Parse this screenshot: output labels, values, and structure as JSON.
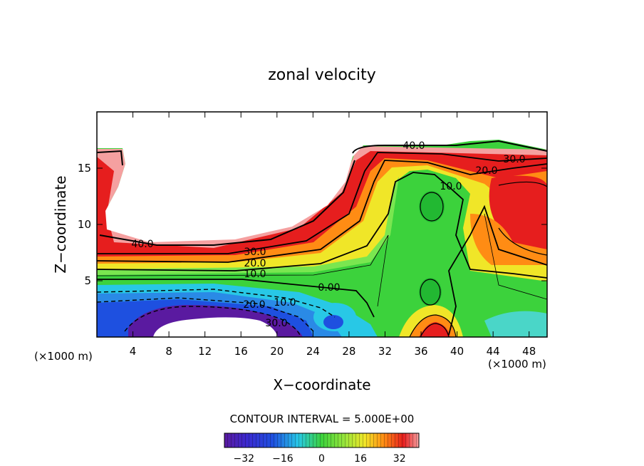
{
  "chart_data": {
    "type": "heatmap",
    "title": "zonal velocity",
    "xlabel": "X−coordinate",
    "ylabel": "Z−coordinate",
    "x_unit_left": "(×1000 m)",
    "x_unit_right": "(×1000 m)",
    "xlim": [
      0,
      50
    ],
    "ylim": [
      0,
      20
    ],
    "x_ticks": [
      4,
      8,
      12,
      16,
      20,
      24,
      28,
      32,
      36,
      40,
      44,
      48
    ],
    "y_ticks": [
      5,
      10,
      15
    ],
    "contour_interval_text": "CONTOUR INTERVAL = 5.000E+00",
    "contour_interval": 5.0,
    "colorbar": {
      "min": -40,
      "max": 40,
      "ticks": [
        -32,
        -16,
        0,
        16,
        32
      ],
      "colormap": "rainbow (purple-blue-cyan-green-yellow-orange-red-pink)"
    },
    "contour_labels": [
      {
        "text": "40.0",
        "x": 5.2,
        "z": 8.3
      },
      {
        "text": "30.0",
        "x": 17.5,
        "z": 7.4
      },
      {
        "text": "20.0",
        "x": 17.5,
        "z": 6.5
      },
      {
        "text": "10.0",
        "x": 17.5,
        "z": 5.6
      },
      {
        "text": "0.00",
        "x": 25.0,
        "z": 4.5
      },
      {
        "text": "10.0",
        "x": 21.0,
        "z": 3.1
      },
      {
        "text": "20.0",
        "x": 17.5,
        "z": 2.8
      },
      {
        "text": "30.0",
        "x": 20.0,
        "z": 1.4
      },
      {
        "text": "40.0",
        "x": 35.8,
        "z": 16.9
      },
      {
        "text": "30.0",
        "x": 46.0,
        "z": 15.7
      },
      {
        "text": "20.0",
        "x": 43.0,
        "z": 14.6
      },
      {
        "text": "10.0",
        "x": 39.0,
        "z": 13.2
      }
    ],
    "blanked_regions": [
      "above ~16.5 km except x < 3",
      "near-surface pocket x = 6–18, z < 1.5"
    ],
    "colors": {
      "purple": "#5a1aa0",
      "blue": "#1e50e0",
      "cyan": "#28c8e6",
      "green": "#3cd23c",
      "yellow": "#f0e628",
      "orange": "#ff8c14",
      "red": "#e61e1e",
      "pink": "#f5a0a0"
    }
  }
}
